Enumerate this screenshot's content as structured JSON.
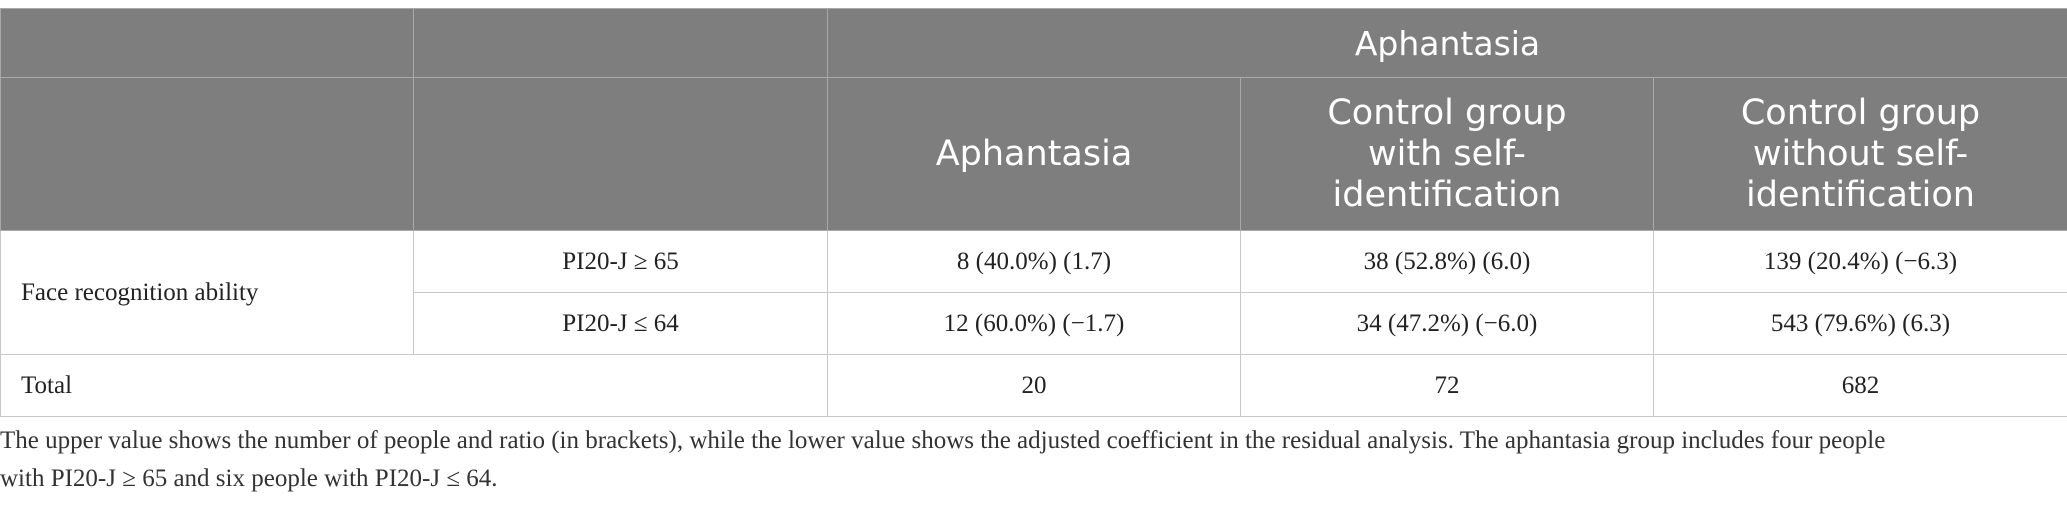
{
  "table": {
    "group_header": "Aphantasia",
    "columns": [
      "Aphantasia",
      "Control group with self-identification",
      "Control group without self-identification"
    ],
    "rows": [
      {
        "category": "Face recognition ability",
        "sub_label": "PI20-J ≥ 65",
        "values": [
          "8 (40.0%) (1.7)",
          "38 (52.8%) (6.0)",
          "139 (20.4%) (−6.3)"
        ]
      },
      {
        "sub_label": "PI20-J ≤ 64",
        "values": [
          "12 (60.0%) (−1.7)",
          "34 (47.2%) (−6.0)",
          "543 (79.6%) (6.3)"
        ]
      }
    ],
    "total": {
      "label": "Total",
      "values": [
        "20",
        "72",
        "682"
      ]
    }
  },
  "footnote": {
    "line1": "The upper value shows the number of people and ratio (in brackets), while the lower value shows the adjusted coefficient in the residual analysis. The aphantasia group includes four people",
    "line2": "with PI20-J ≥ 65 and six people with PI20-J ≤ 64."
  },
  "colors": {
    "header_bg": "#7d7e7d",
    "header_text": "#ffffff",
    "body_text": "#222222",
    "grid_line": "#c8c8c8"
  }
}
